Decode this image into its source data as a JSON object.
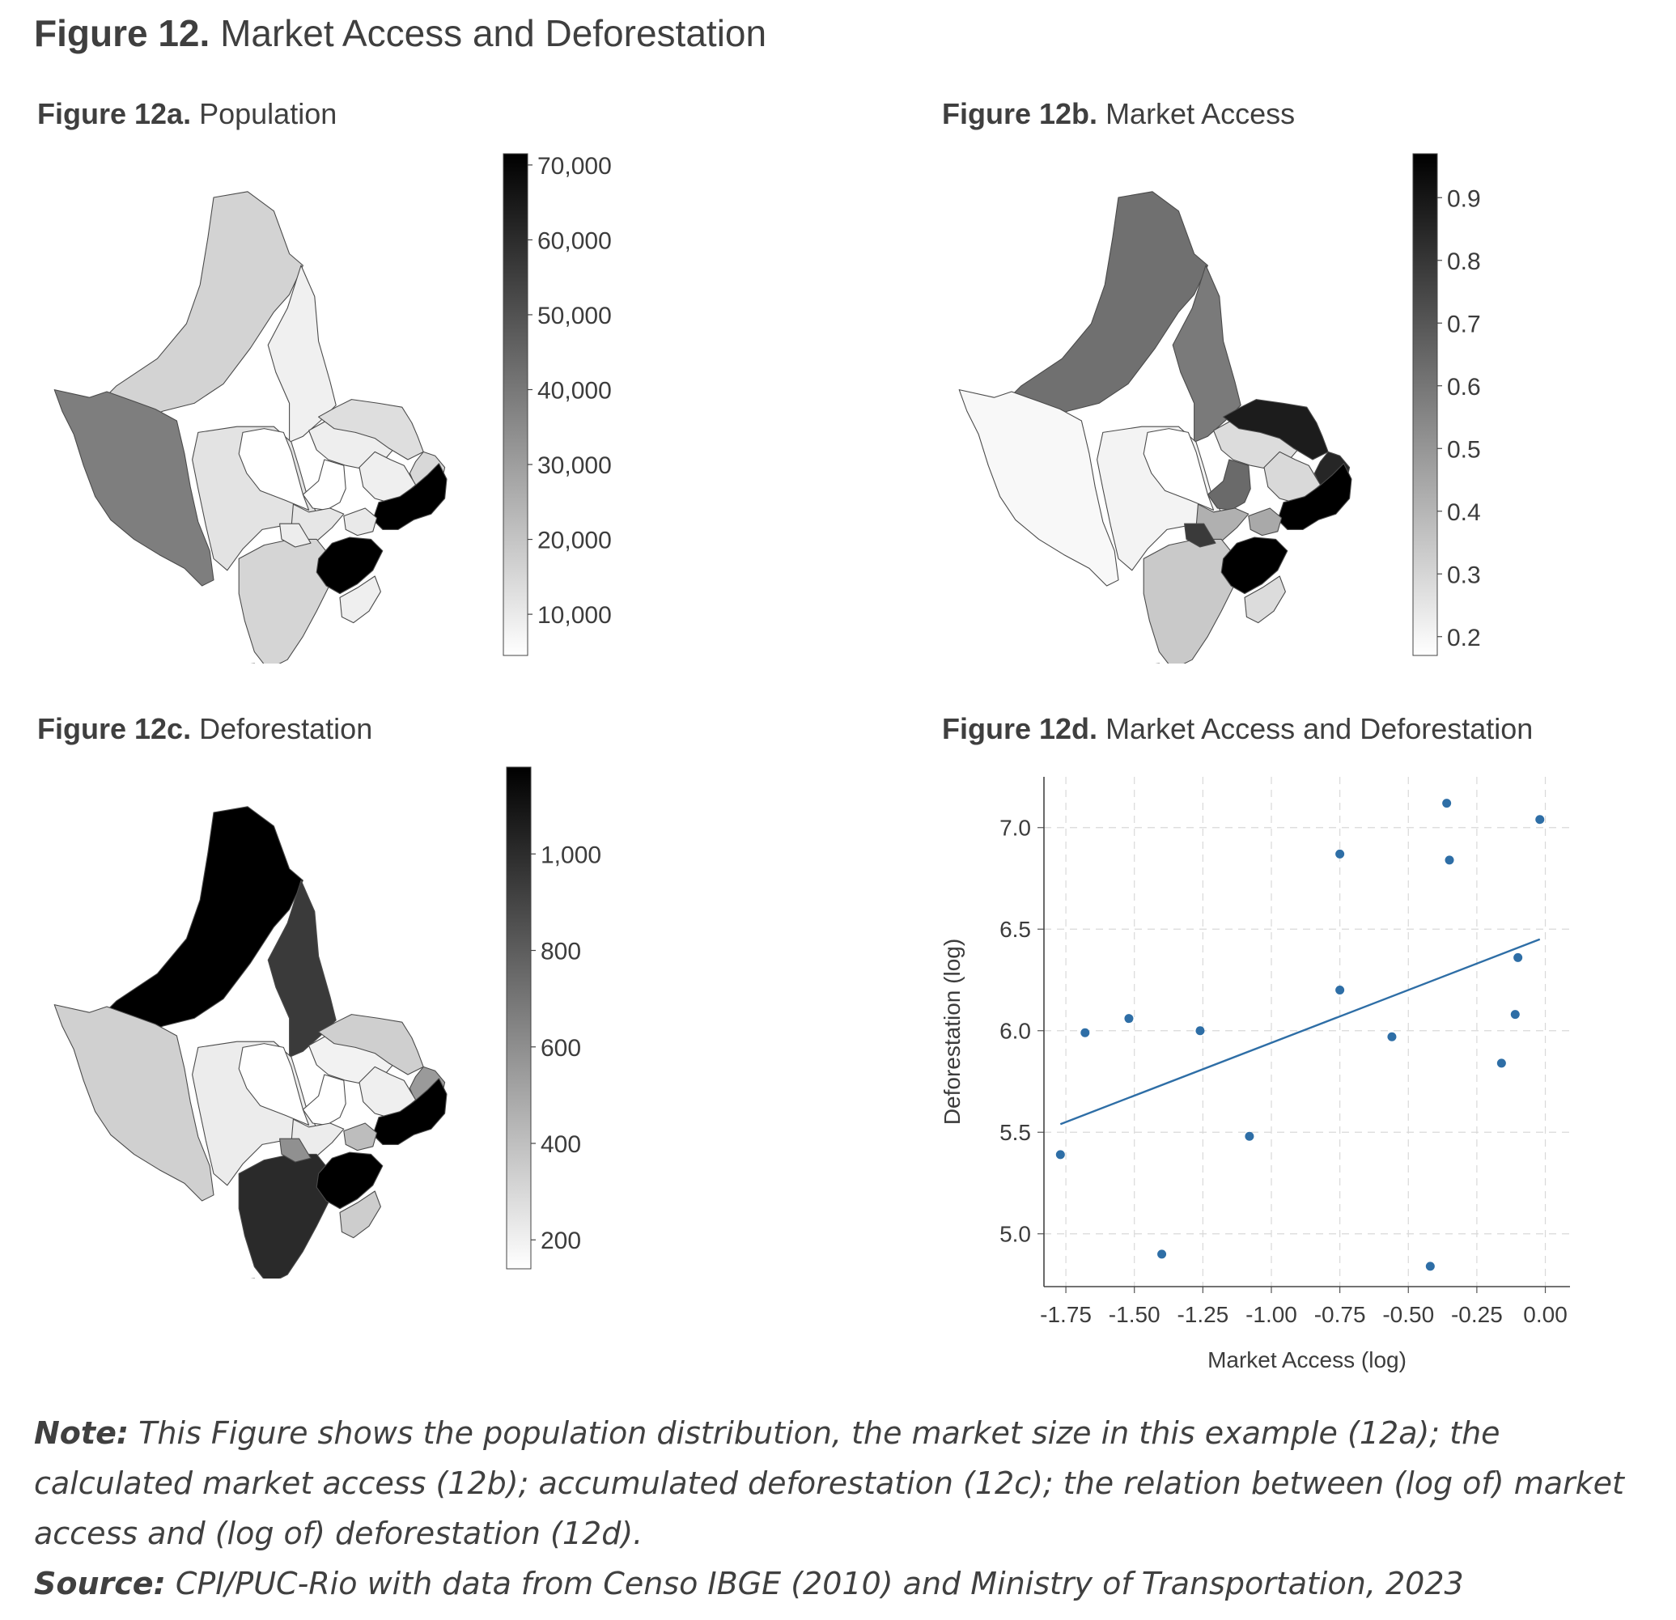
{
  "figure": {
    "label": "Figure 12.",
    "title": "Market Access and Deforestation"
  },
  "panels": {
    "a": {
      "label": "Figure 12a.",
      "title": "Population",
      "colorbar": {
        "ticks": [
          "70,000",
          "60,000",
          "50,000",
          "40,000",
          "30,000",
          "20,000",
          "10,000"
        ],
        "values": [
          70000,
          60000,
          50000,
          40000,
          30000,
          20000,
          10000
        ],
        "min": 4500,
        "max": 71500
      }
    },
    "b": {
      "label": "Figure 12b.",
      "title": "Market Access",
      "colorbar": {
        "ticks": [
          "0.9",
          "0.8",
          "0.7",
          "0.6",
          "0.5",
          "0.4",
          "0.3",
          "0.2"
        ],
        "values": [
          0.9,
          0.8,
          0.7,
          0.6,
          0.5,
          0.4,
          0.3,
          0.2
        ],
        "min": 0.17,
        "max": 0.97
      }
    },
    "c": {
      "label": "Figure 12c.",
      "title": "Deforestation",
      "colorbar": {
        "ticks": [
          "1,000",
          "800",
          "600",
          "400",
          "200"
        ],
        "values": [
          1000,
          800,
          600,
          400,
          200
        ],
        "min": 140,
        "max": 1180
      }
    },
    "d": {
      "label": "Figure 12d.",
      "title": "Market Access and Deforestation"
    }
  },
  "map_shading": {
    "a": [
      "#d3d3d3",
      "#f0f0f0",
      "#7e7e7e",
      "#e3e3e3",
      "#ffffff",
      "#eeeeee",
      "#ffffff",
      "#dedede",
      "#d8d8d8",
      "#efefef",
      "#e6e6e6",
      "#d5d5d5",
      "#ededed",
      "#000000",
      "#000000",
      "#e9e9e9",
      "#efefef",
      "#e8e8e8"
    ],
    "b": [
      "#707070",
      "#7a7a7a",
      "#f8f8f8",
      "#f3f3f3",
      "#ffffff",
      "#dcdcdc",
      "#6a6a6a",
      "#1c1c1c",
      "#262626",
      "#d9d9d9",
      "#b0b0b0",
      "#c9c9c9",
      "#3a3a3a",
      "#000000",
      "#000000",
      "#a9a9a9",
      "#dcdcdc",
      "#f0f0f0"
    ],
    "c": [
      "#000000",
      "#3a3a3a",
      "#d0d0d0",
      "#ececec",
      "#ffffff",
      "#f2f2f2",
      "#ffffff",
      "#cfcfcf",
      "#9a9a9a",
      "#efefef",
      "#ececec",
      "#2a2a2a",
      "#909090",
      "#000000",
      "#000000",
      "#bdbdbd",
      "#cdcdcd",
      "#d0d0d0"
    ]
  },
  "chart_data": {
    "type": "scatter",
    "xlabel": "Market Access (log)",
    "ylabel": "Deforestation (log)",
    "xlim": [
      -1.83,
      0.09
    ],
    "ylim": [
      4.74,
      7.25
    ],
    "xticks": [
      "-1.75",
      "-1.50",
      "-1.25",
      "-1.00",
      "-0.75",
      "-0.50",
      "-0.25",
      "0.00"
    ],
    "yticks": [
      "5.0",
      "5.5",
      "6.0",
      "6.5",
      "7.0"
    ],
    "grid": true,
    "points": [
      {
        "x": -1.77,
        "y": 5.39
      },
      {
        "x": -1.68,
        "y": 5.99
      },
      {
        "x": -1.52,
        "y": 6.06
      },
      {
        "x": -1.4,
        "y": 4.9
      },
      {
        "x": -1.26,
        "y": 6.0
      },
      {
        "x": -1.08,
        "y": 5.48
      },
      {
        "x": -0.75,
        "y": 6.87
      },
      {
        "x": -0.75,
        "y": 6.2
      },
      {
        "x": -0.56,
        "y": 5.97
      },
      {
        "x": -0.42,
        "y": 4.84
      },
      {
        "x": -0.36,
        "y": 7.12
      },
      {
        "x": -0.35,
        "y": 6.84
      },
      {
        "x": -0.16,
        "y": 5.84
      },
      {
        "x": -0.11,
        "y": 6.08
      },
      {
        "x": -0.1,
        "y": 6.36
      },
      {
        "x": -0.02,
        "y": 7.04
      }
    ],
    "fit_line": {
      "x": [
        -1.77,
        -0.02
      ],
      "y": [
        5.54,
        6.45
      ]
    },
    "point_color": "#2e6ea6",
    "line_color": "#2e6ea6"
  },
  "note": {
    "label": "Note:",
    "text": " This Figure shows the population distribution, the market size in this example (12a); the calculated market access (12b); accumulated deforestation (12c); the relation between (log of) market access and (log of) deforestation (12d)."
  },
  "source": {
    "label": "Source:",
    "text": " CPI/PUC-Rio with data from Censo IBGE (2010) and Ministry of Transportation, 2023"
  }
}
